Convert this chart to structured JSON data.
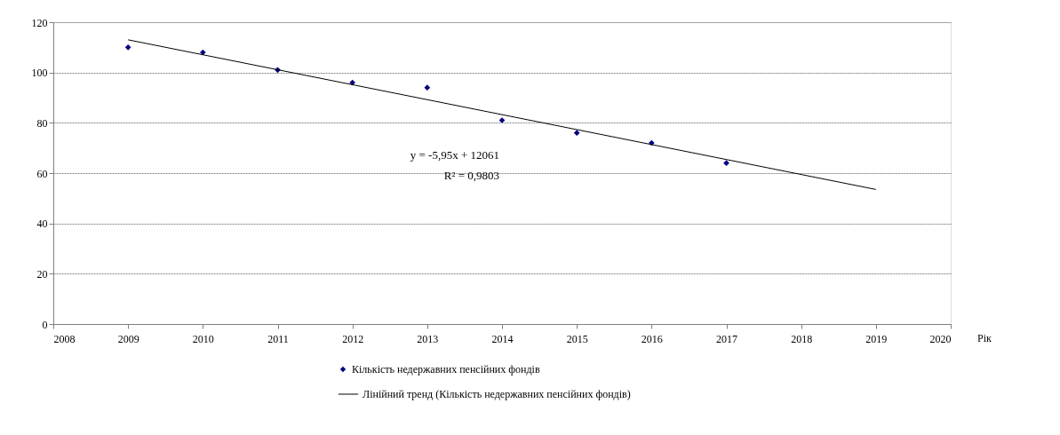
{
  "chart_data": {
    "type": "scatter",
    "xlabel": "Рік",
    "x": [
      2009,
      2010,
      2011,
      2012,
      2013,
      2014,
      2015,
      2016,
      2017
    ],
    "series": [
      {
        "name": "Кількість недержавних пенсійних фондів",
        "color": "#000080",
        "marker": "diamond",
        "values": [
          110,
          108,
          101,
          96,
          94,
          81,
          76,
          72,
          64
        ]
      },
      {
        "name": "Лінійний тренд (Кількість недержавних пенсійних фондів)",
        "color": "#000000",
        "type": "line",
        "line_style": "solid",
        "x": [
          2009,
          2019
        ],
        "values": [
          113,
          53.5
        ]
      }
    ],
    "annotations": [
      "y = -5,95x + 12061",
      "R² = 0,9803"
    ],
    "xlim": [
      2008,
      2020
    ],
    "xticks": [
      2008,
      2009,
      2010,
      2011,
      2012,
      2013,
      2014,
      2015,
      2016,
      2017,
      2018,
      2019,
      2020
    ],
    "ylim": [
      0,
      120
    ],
    "yticks": [
      0,
      20,
      40,
      60,
      80,
      100,
      120
    ],
    "grid": "y",
    "legend": "bottom"
  }
}
